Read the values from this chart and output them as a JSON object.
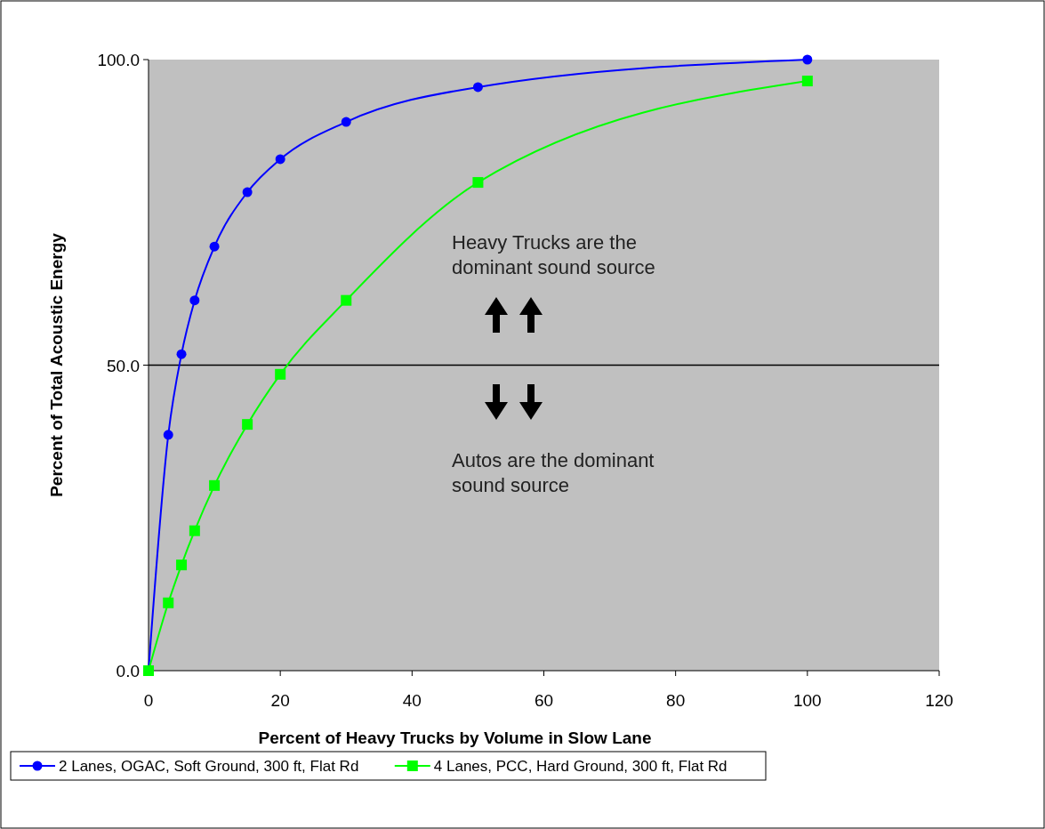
{
  "chart_data": {
    "type": "line",
    "xlabel": "Percent of Heavy Trucks by Volume in Slow Lane",
    "ylabel": "Percent of Total Acoustic Energy",
    "xlim": [
      0,
      120
    ],
    "xticks": [
      0,
      20,
      40,
      60,
      80,
      100,
      120
    ],
    "ylim": [
      0,
      100
    ],
    "yticks": [
      {
        "value": 0,
        "label": "0.0"
      },
      {
        "value": 50,
        "label": "50.0"
      },
      {
        "value": 100,
        "label": "100.0"
      }
    ],
    "series": [
      {
        "name": "2 Lanes, OGAC, Soft Ground, 300 ft, Flat Rd",
        "color": "#0000ff",
        "marker": "circle",
        "x": [
          0,
          3,
          5,
          7,
          10,
          15,
          20,
          30,
          50,
          100
        ],
        "values": [
          0,
          38.6,
          51.8,
          60.6,
          69.4,
          78.3,
          83.7,
          89.8,
          95.5,
          100
        ]
      },
      {
        "name": "4 Lanes, PCC, Hard Ground, 300 ft, Flat Rd",
        "color": "#00ff00",
        "marker": "square",
        "x": [
          0,
          3,
          5,
          7,
          10,
          15,
          20,
          30,
          50,
          100
        ],
        "values": [
          0,
          11.1,
          17.3,
          22.9,
          30.3,
          40.3,
          48.5,
          60.6,
          79.9,
          96.5
        ]
      }
    ],
    "ref_lines": [
      {
        "axis": "y",
        "value": 50,
        "color": "#000000"
      }
    ],
    "annotations": [
      "Heavy Trucks are the dominant sound source",
      "Autos are the dominant sound source"
    ],
    "grid": false,
    "legend": "bottom",
    "line_style": "solid"
  }
}
